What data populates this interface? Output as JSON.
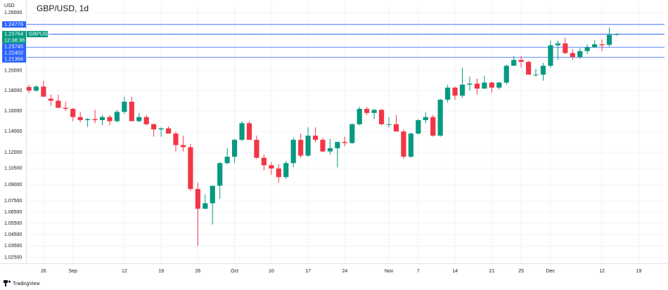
{
  "chart_data": {
    "type": "candlestick",
    "title": "GBP/USD, 1d",
    "y_axis_label": "USD",
    "symbol": "GBPUSD",
    "source": "TradingView",
    "log_scale": true,
    "grid": true,
    "up_color": "#089981",
    "down_color": "#f23645",
    "level_color": "#2962ff",
    "ylim": [
      1.02,
      1.27
    ],
    "yticks": [
      {
        "value": 1.26,
        "label": "1.26000"
      },
      {
        "value": 1.2,
        "label": "1.20000"
      },
      {
        "value": 1.18,
        "label": "1.18000"
      },
      {
        "value": 1.16,
        "label": "1.16000"
      },
      {
        "value": 1.14,
        "label": "1.14000"
      },
      {
        "value": 1.12,
        "label": "1.12000"
      },
      {
        "value": 1.105,
        "label": "1.10500"
      },
      {
        "value": 1.09,
        "label": "1.09000"
      },
      {
        "value": 1.075,
        "label": "1.07500"
      },
      {
        "value": 1.065,
        "label": "1.06500"
      },
      {
        "value": 1.055,
        "label": "1.05500"
      },
      {
        "value": 1.045,
        "label": "1.04500"
      },
      {
        "value": 1.035,
        "label": "1.03500"
      },
      {
        "value": 1.025,
        "label": "1.02500"
      }
    ],
    "levels": [
      1.24776,
      1.23745,
      1.22402,
      1.21356
    ],
    "last_price": 1.23764,
    "countdown": "12:38:36",
    "categories": [
      null,
      null,
      "26",
      null,
      null,
      null,
      "Sep",
      null,
      null,
      null,
      null,
      null,
      null,
      "12",
      null,
      null,
      null,
      null,
      "19",
      null,
      null,
      null,
      null,
      "26",
      null,
      null,
      null,
      null,
      "Oct",
      null,
      null,
      null,
      null,
      "10",
      null,
      null,
      null,
      null,
      "17",
      null,
      null,
      null,
      null,
      "24",
      null,
      null,
      null,
      null,
      null,
      "Nov",
      null,
      null,
      null,
      "7",
      null,
      null,
      null,
      null,
      "14",
      null,
      null,
      null,
      null,
      "21",
      null,
      null,
      null,
      "25",
      null,
      null,
      null,
      "Dec",
      null,
      null,
      null,
      null,
      null,
      null,
      "12",
      null,
      null,
      null,
      null,
      "19",
      null,
      null
    ],
    "open": [
      1.1836,
      1.18,
      1.184,
      1.172,
      1.17,
      1.163,
      1.162,
      1.154,
      1.151,
      1.152,
      1.151,
      1.154,
      1.15,
      1.159,
      1.169,
      1.15,
      1.154,
      1.147,
      1.142,
      1.143,
      1.138,
      1.127,
      1.125,
      1.086,
      1.068,
      1.073,
      1.089,
      1.11,
      1.116,
      1.132,
      1.148,
      1.132,
      1.115,
      1.108,
      1.105,
      1.097,
      1.11,
      1.132,
      1.117,
      1.136,
      1.132,
      1.121,
      1.124,
      1.13,
      1.129,
      1.147,
      1.162,
      1.158,
      1.161,
      1.147,
      1.147,
      1.14,
      1.116,
      1.138,
      1.151,
      1.154,
      1.136,
      1.171,
      1.183,
      1.175,
      1.186,
      1.187,
      1.182,
      1.188,
      1.183,
      1.188,
      1.205,
      1.211,
      1.209,
      1.196,
      1.196,
      1.205,
      1.226,
      1.228,
      1.218,
      1.214,
      1.22,
      1.224,
      1.227,
      1.2265,
      1.2368,
      null,
      null,
      null,
      null,
      null
    ],
    "high": [
      1.186,
      1.1853,
      1.19,
      1.176,
      1.176,
      1.169,
      1.163,
      1.159,
      1.153,
      1.161,
      1.156,
      1.156,
      1.161,
      1.174,
      1.174,
      1.158,
      1.156,
      1.148,
      1.144,
      1.145,
      1.14,
      1.136,
      1.128,
      1.092,
      1.081,
      1.088,
      1.111,
      1.124,
      1.133,
      1.15,
      1.15,
      1.136,
      1.118,
      1.111,
      1.109,
      1.112,
      1.134,
      1.138,
      1.144,
      1.144,
      1.134,
      1.133,
      1.13,
      1.135,
      1.148,
      1.164,
      1.164,
      1.162,
      1.162,
      1.154,
      1.156,
      1.142,
      1.139,
      1.152,
      1.159,
      1.156,
      1.172,
      1.186,
      1.184,
      1.203,
      1.194,
      1.192,
      1.195,
      1.189,
      1.189,
      1.206,
      1.215,
      1.215,
      1.21,
      1.202,
      1.208,
      1.231,
      1.231,
      1.234,
      1.222,
      1.223,
      1.227,
      1.231,
      1.232,
      1.2444,
      1.2385,
      null,
      null,
      null,
      null,
      null
    ],
    "low": [
      1.1776,
      1.179,
      1.174,
      1.165,
      1.163,
      1.16,
      1.15,
      1.149,
      1.1445,
      1.148,
      1.146,
      1.146,
      1.149,
      1.157,
      1.15,
      1.149,
      1.146,
      1.135,
      1.135,
      1.138,
      1.121,
      1.121,
      1.084,
      1.035,
      1.068,
      1.054,
      1.077,
      1.109,
      1.11,
      1.131,
      1.132,
      1.114,
      1.103,
      1.099,
      1.092,
      1.095,
      1.106,
      1.115,
      1.116,
      1.13,
      1.12,
      1.118,
      1.106,
      1.126,
      1.128,
      1.146,
      1.156,
      1.152,
      1.146,
      1.144,
      1.14,
      1.114,
      1.115,
      1.137,
      1.148,
      1.135,
      1.135,
      1.168,
      1.171,
      1.173,
      1.18,
      1.176,
      1.182,
      1.178,
      1.181,
      1.186,
      1.205,
      1.203,
      1.196,
      1.194,
      1.19,
      1.203,
      1.211,
      1.217,
      1.211,
      1.212,
      1.217,
      1.223,
      1.22,
      1.2245,
      1.236,
      null,
      null,
      null,
      null,
      null
    ],
    "close": [
      1.18,
      1.184,
      1.174,
      1.17,
      1.163,
      1.162,
      1.154,
      1.151,
      1.152,
      1.151,
      1.154,
      1.15,
      1.159,
      1.169,
      1.15,
      1.154,
      1.147,
      1.142,
      1.143,
      1.138,
      1.127,
      1.125,
      1.086,
      1.068,
      1.073,
      1.089,
      1.11,
      1.116,
      1.132,
      1.148,
      1.132,
      1.115,
      1.108,
      1.105,
      1.097,
      1.11,
      1.132,
      1.117,
      1.136,
      1.132,
      1.121,
      1.124,
      1.13,
      1.129,
      1.147,
      1.162,
      1.158,
      1.161,
      1.147,
      1.147,
      1.14,
      1.116,
      1.138,
      1.151,
      1.154,
      1.136,
      1.171,
      1.183,
      1.175,
      1.186,
      1.187,
      1.182,
      1.188,
      1.183,
      1.188,
      1.205,
      1.211,
      1.209,
      1.196,
      1.196,
      1.205,
      1.226,
      1.228,
      1.218,
      1.214,
      1.22,
      1.224,
      1.227,
      1.226,
      1.2368,
      1.23764,
      null,
      null,
      null,
      null,
      null
    ]
  }
}
